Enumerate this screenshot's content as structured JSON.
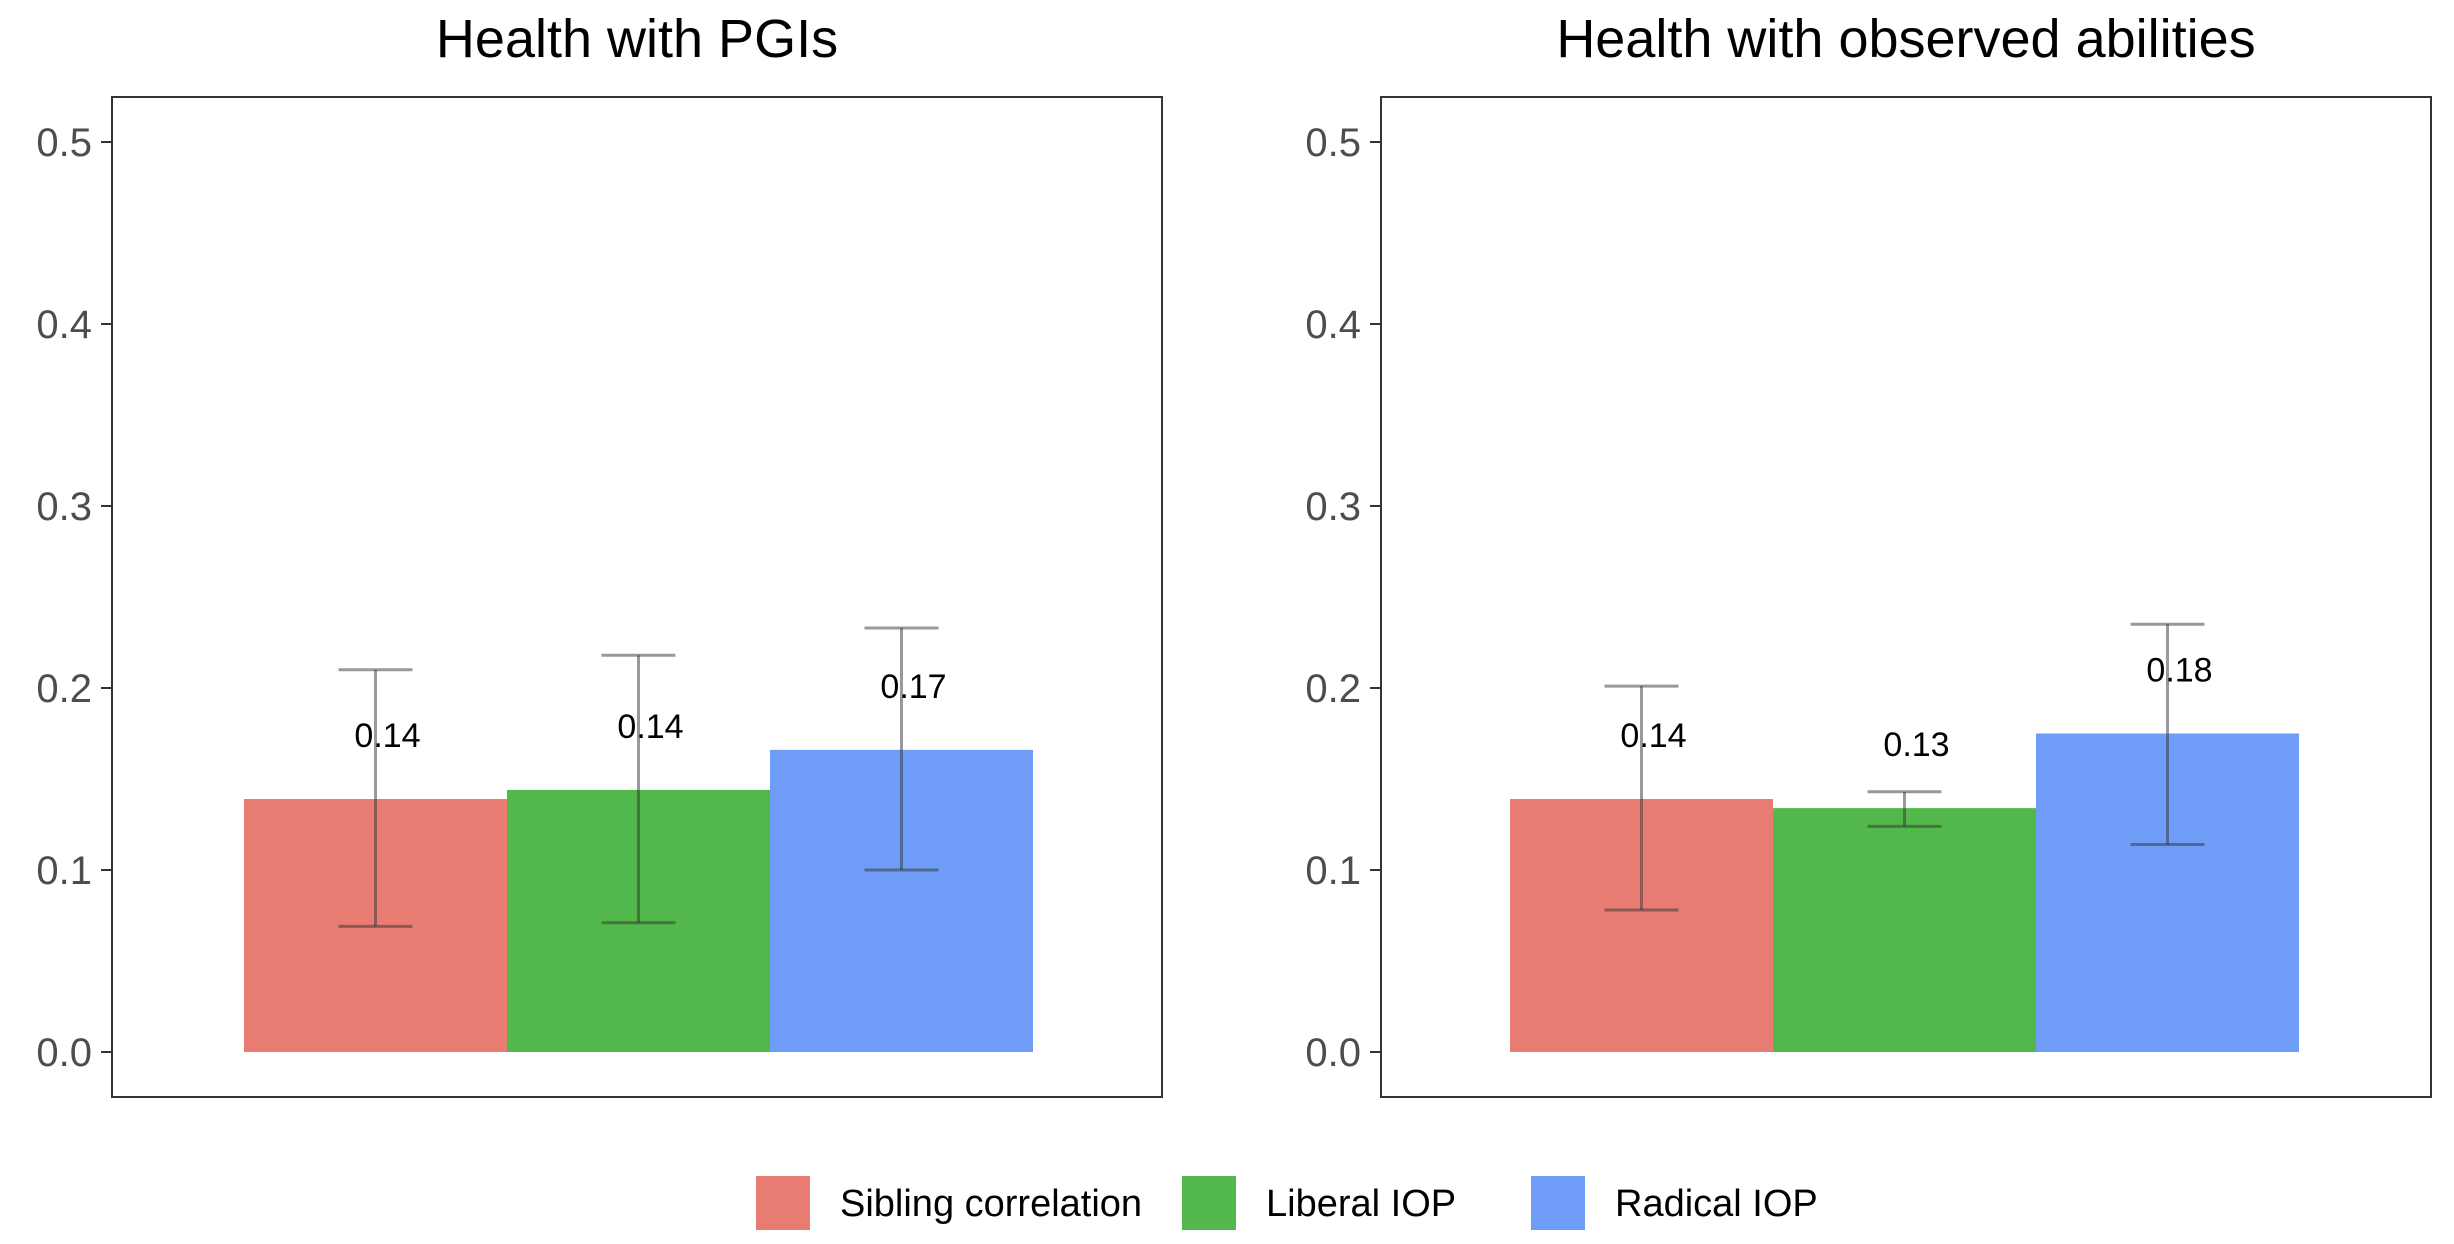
{
  "chart_data": [
    {
      "type": "bar",
      "title": "Health with PGIs",
      "xlabel": "",
      "ylabel": "",
      "ylim": [
        0,
        0.5
      ],
      "yticks": [
        "0.0",
        "0.1",
        "0.2",
        "0.3",
        "0.4",
        "0.5"
      ],
      "grid": false,
      "categories": [
        "Sibling correlation",
        "Liberal IOP",
        "Radical IOP"
      ],
      "values": [
        0.139,
        0.144,
        0.166
      ],
      "ci_lower": [
        0.069,
        0.071,
        0.1
      ],
      "ci_upper": [
        0.21,
        0.218,
        0.233
      ],
      "data_labels": [
        "0.14",
        "0.14",
        "0.17"
      ]
    },
    {
      "type": "bar",
      "title": "Health with observed abilities",
      "xlabel": "",
      "ylabel": "",
      "ylim": [
        0,
        0.5
      ],
      "yticks": [
        "0.0",
        "0.1",
        "0.2",
        "0.3",
        "0.4",
        "0.5"
      ],
      "grid": false,
      "categories": [
        "Sibling correlation",
        "Liberal IOP",
        "Radical IOP"
      ],
      "values": [
        0.139,
        0.134,
        0.175
      ],
      "ci_lower": [
        0.078,
        0.124,
        0.114
      ],
      "ci_upper": [
        0.201,
        0.143,
        0.235
      ],
      "data_labels": [
        "0.14",
        "0.13",
        "0.18"
      ]
    }
  ],
  "legend": {
    "position": "bottom",
    "items": [
      {
        "label": "Sibling correlation",
        "color": "#E87C73"
      },
      {
        "label": "Liberal IOP",
        "color": "#53B84B"
      },
      {
        "label": "Radical IOP",
        "color": "#6E9CF7"
      }
    ]
  },
  "colors": {
    "series": [
      "#E87C73",
      "#53B84B",
      "#6E9CF7"
    ],
    "errorbar": "#333333",
    "panel_border": "#333333",
    "axis_text": "#4d4d4d"
  }
}
